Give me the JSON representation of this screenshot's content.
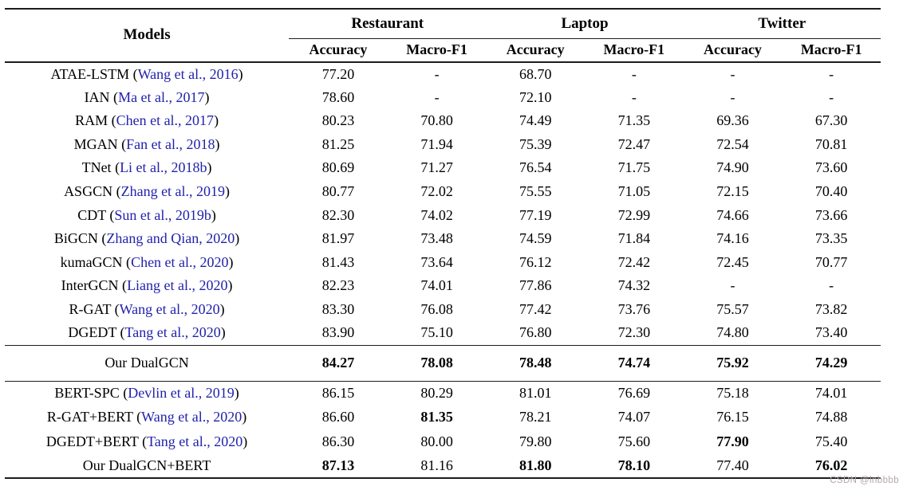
{
  "colors": {
    "citation_blue": "#2222ac",
    "rule": "#1c1c1c",
    "watermark_color": "#b5a8a8"
  },
  "watermark": {
    "text": "CSDN @lnbbbb"
  },
  "table": {
    "models_header": "Models",
    "groups": [
      {
        "label": "Restaurant"
      },
      {
        "label": "Laptop"
      },
      {
        "label": "Twitter"
      }
    ],
    "metric_headers": [
      "Accuracy",
      "Macro-F1",
      "Accuracy",
      "Macro-F1",
      "Accuracy",
      "Macro-F1"
    ],
    "sections": [
      {
        "name": "baseline-models",
        "rows": [
          {
            "name": "ATAE-LSTM",
            "citation": "Wang et al., 2016",
            "values": [
              "77.20",
              "-",
              "68.70",
              "-",
              "-",
              "-"
            ],
            "bold": []
          },
          {
            "name": "IAN",
            "citation": "Ma et al., 2017",
            "values": [
              "78.60",
              "-",
              "72.10",
              "-",
              "-",
              "-"
            ],
            "bold": []
          },
          {
            "name": "RAM",
            "citation": "Chen et al., 2017",
            "values": [
              "80.23",
              "70.80",
              "74.49",
              "71.35",
              "69.36",
              "67.30"
            ],
            "bold": []
          },
          {
            "name": "MGAN",
            "citation": "Fan et al., 2018",
            "values": [
              "81.25",
              "71.94",
              "75.39",
              "72.47",
              "72.54",
              "70.81"
            ],
            "bold": []
          },
          {
            "name": "TNet",
            "citation": "Li et al., 2018b",
            "values": [
              "80.69",
              "71.27",
              "76.54",
              "71.75",
              "74.90",
              "73.60"
            ],
            "bold": []
          },
          {
            "name": "ASGCN",
            "citation": "Zhang et al., 2019",
            "values": [
              "80.77",
              "72.02",
              "75.55",
              "71.05",
              "72.15",
              "70.40"
            ],
            "bold": []
          },
          {
            "name": "CDT",
            "citation": "Sun et al., 2019b",
            "values": [
              "82.30",
              "74.02",
              "77.19",
              "72.99",
              "74.66",
              "73.66"
            ],
            "bold": []
          },
          {
            "name": "BiGCN",
            "citation": "Zhang and Qian, 2020",
            "values": [
              "81.97",
              "73.48",
              "74.59",
              "71.84",
              "74.16",
              "73.35"
            ],
            "bold": []
          },
          {
            "name": "kumaGCN",
            "citation": "Chen et al., 2020",
            "values": [
              "81.43",
              "73.64",
              "76.12",
              "72.42",
              "72.45",
              "70.77"
            ],
            "bold": []
          },
          {
            "name": "InterGCN",
            "citation": "Liang et al., 2020",
            "values": [
              "82.23",
              "74.01",
              "77.86",
              "74.32",
              "-",
              "-"
            ],
            "bold": []
          },
          {
            "name": "R-GAT",
            "citation": "Wang et al., 2020",
            "values": [
              "83.30",
              "76.08",
              "77.42",
              "73.76",
              "75.57",
              "73.82"
            ],
            "bold": []
          },
          {
            "name": "DGEDT",
            "citation": "Tang et al., 2020",
            "values": [
              "83.90",
              "75.10",
              "76.80",
              "72.30",
              "74.80",
              "73.40"
            ],
            "bold": []
          }
        ]
      },
      {
        "name": "our-dualgcn",
        "rows": [
          {
            "name": "Our DualGCN",
            "citation": null,
            "values": [
              "84.27",
              "78.08",
              "78.48",
              "74.74",
              "75.92",
              "74.29"
            ],
            "bold": [
              0,
              1,
              2,
              3,
              4,
              5
            ]
          }
        ]
      },
      {
        "name": "bert-models",
        "rows": [
          {
            "name": "BERT-SPC",
            "citation": "Devlin et al., 2019",
            "values": [
              "86.15",
              "80.29",
              "81.01",
              "76.69",
              "75.18",
              "74.01"
            ],
            "bold": []
          },
          {
            "name": "R-GAT+BERT",
            "citation": "Wang et al., 2020",
            "values": [
              "86.60",
              "81.35",
              "78.21",
              "74.07",
              "76.15",
              "74.88"
            ],
            "bold": [
              1
            ]
          },
          {
            "name": "DGEDT+BERT",
            "citation": "Tang et al., 2020",
            "values": [
              "86.30",
              "80.00",
              "79.80",
              "75.60",
              "77.90",
              "75.40"
            ],
            "bold": [
              4
            ]
          },
          {
            "name": "Our DualGCN+BERT",
            "citation": null,
            "values": [
              "87.13",
              "81.16",
              "81.80",
              "78.10",
              "77.40",
              "76.02"
            ],
            "bold": [
              0,
              2,
              3,
              5
            ]
          }
        ]
      }
    ]
  }
}
